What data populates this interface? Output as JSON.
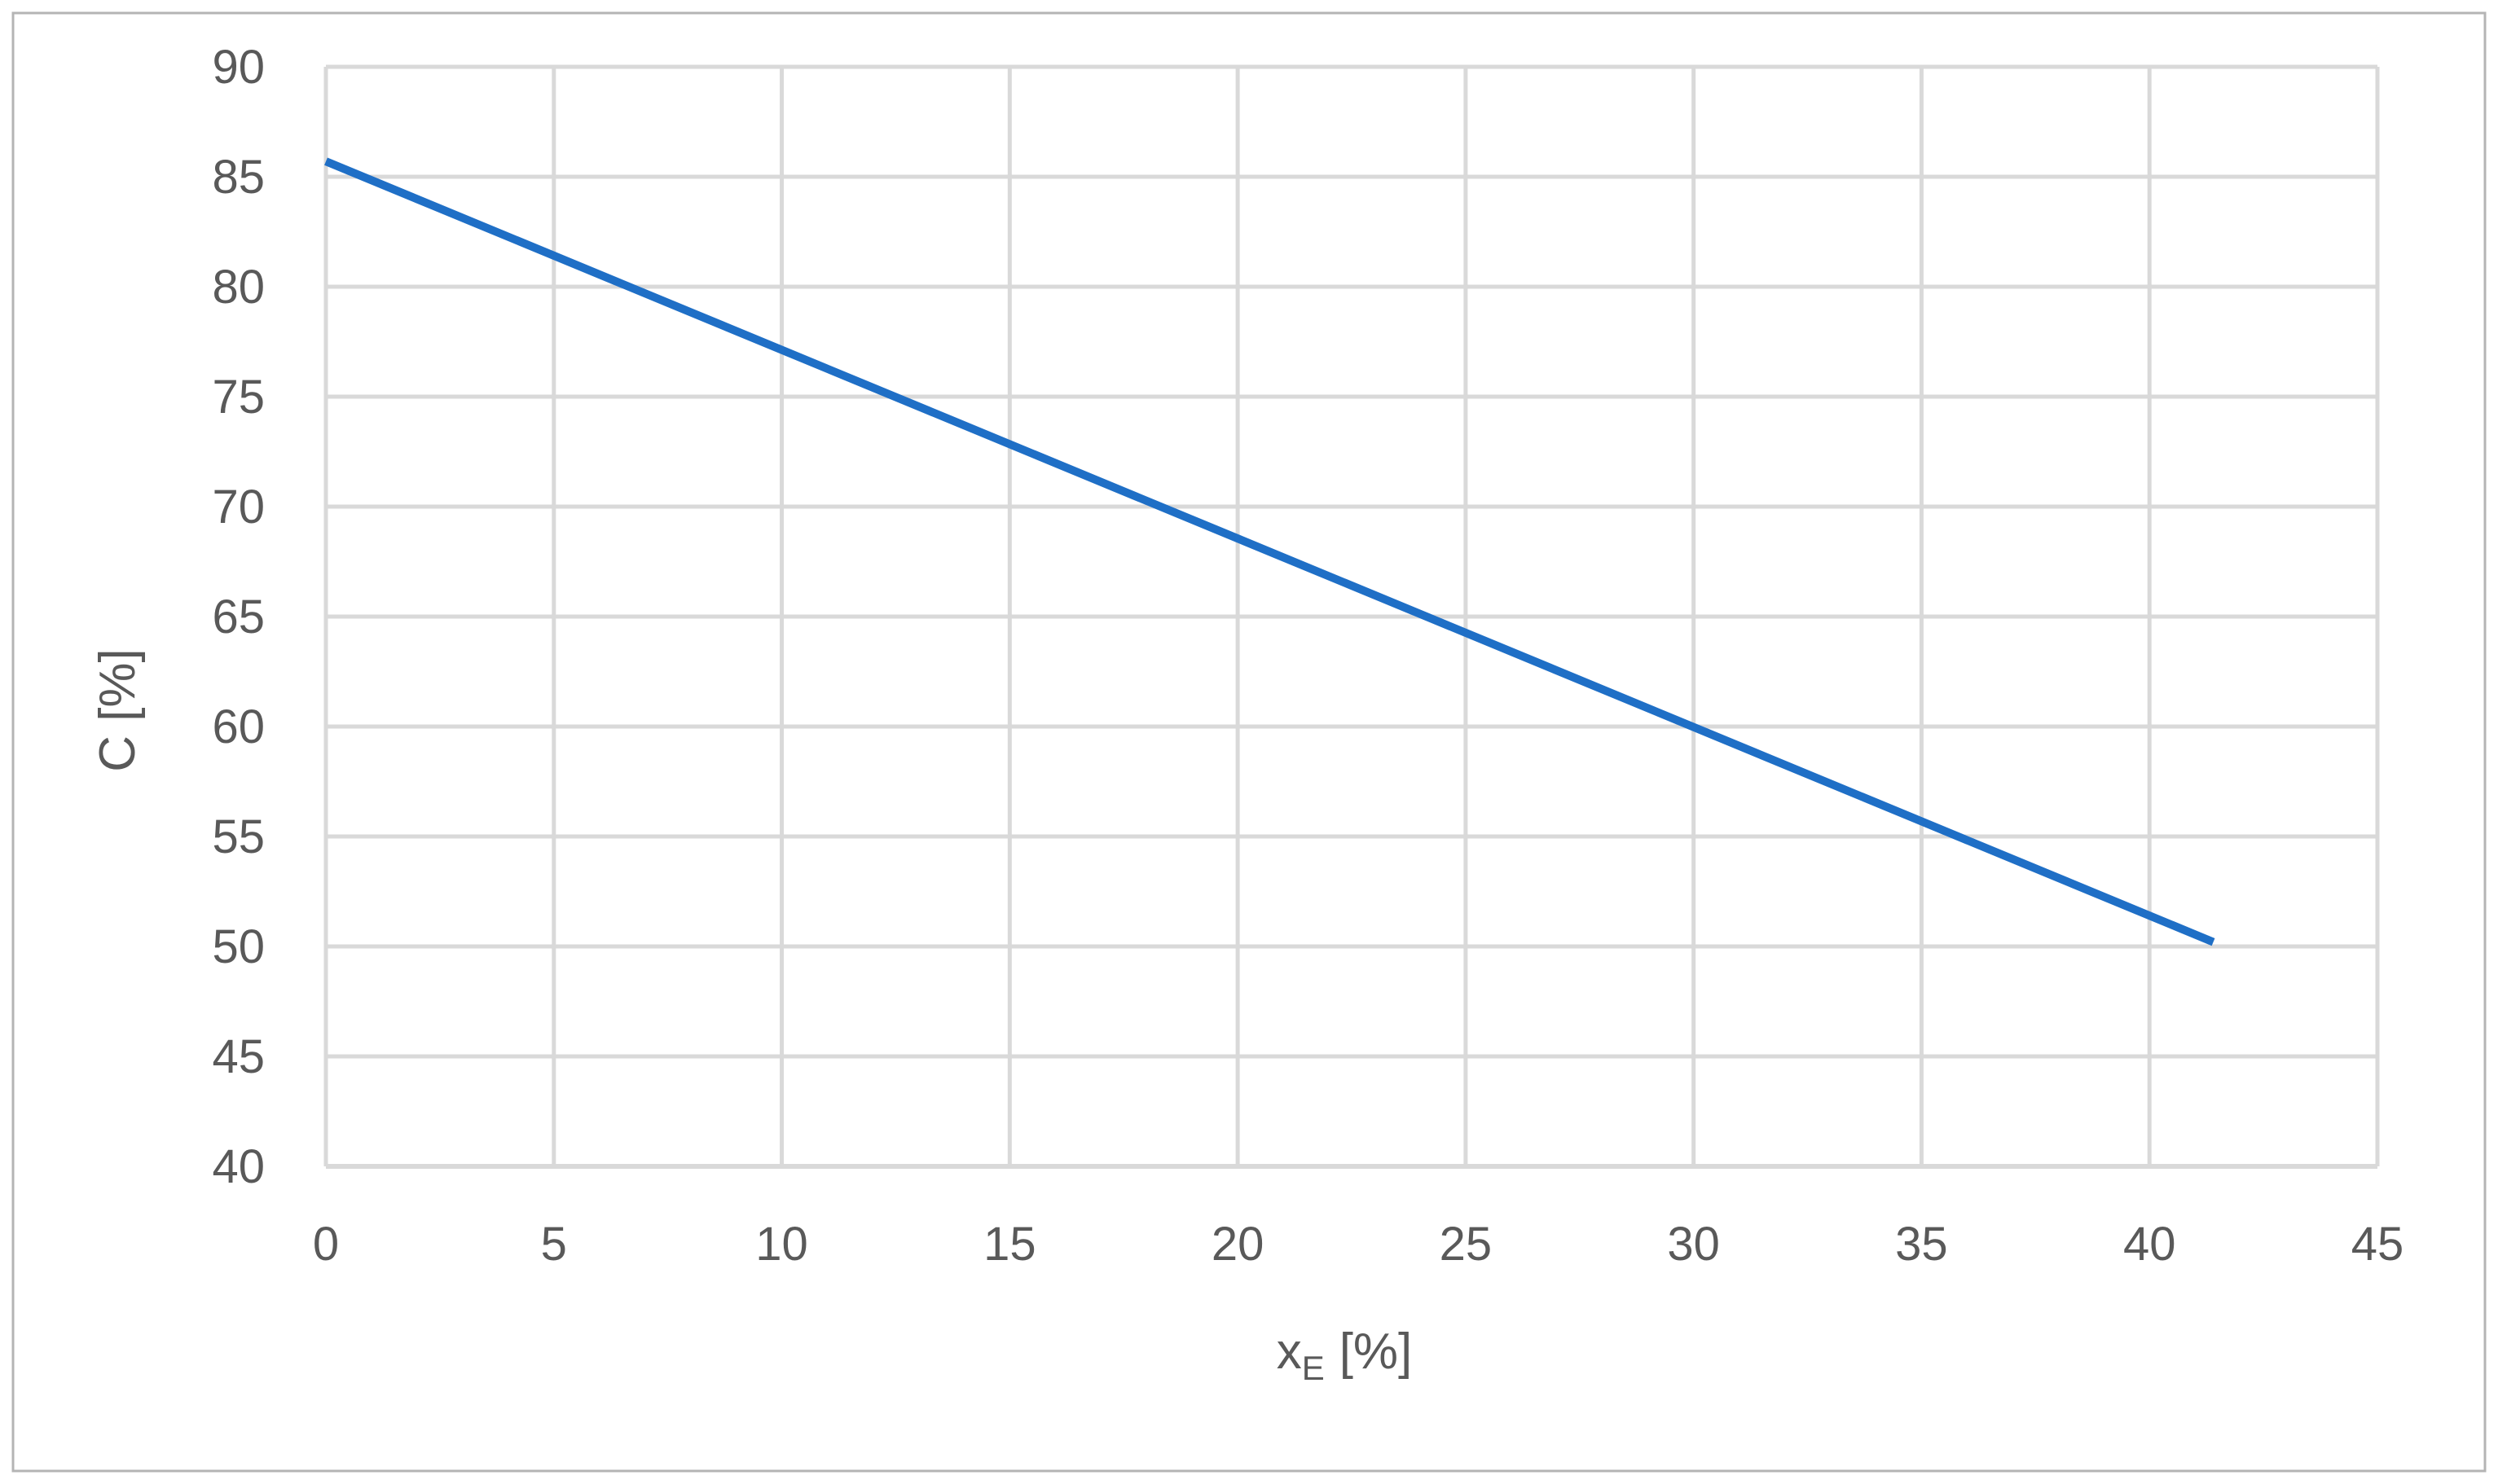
{
  "chart_data": {
    "type": "line",
    "title": "",
    "xlabel": "x",
    "xlabel_subscript": "E",
    "xlabel_unit": "[%]",
    "ylabel": "C [%]",
    "xlim": [
      0,
      45
    ],
    "ylim": [
      40,
      90
    ],
    "xticks": [
      0,
      5,
      10,
      15,
      20,
      25,
      30,
      35,
      40,
      45
    ],
    "yticks": [
      40,
      45,
      50,
      55,
      60,
      65,
      70,
      75,
      80,
      85,
      90
    ],
    "grid": true,
    "legend": "none",
    "series": [
      {
        "color": "#1f6fc6",
        "x": [
          0,
          41.4
        ],
        "y": [
          85.7,
          50.2
        ]
      }
    ]
  }
}
